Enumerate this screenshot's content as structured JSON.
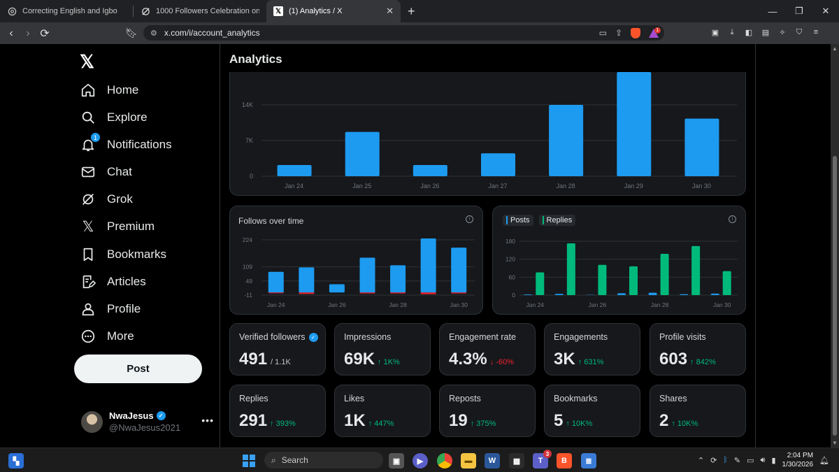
{
  "browser": {
    "tabs": [
      {
        "title": "Correcting English and Igbo",
        "icon": "chatgpt-icon",
        "active": false
      },
      {
        "title": "1000 Followers Celebration on X - Gr",
        "icon": "grok-icon",
        "active": false
      },
      {
        "title": "(1) Analytics / X",
        "icon": "x-icon",
        "active": true
      }
    ],
    "url": "x.com/i/account_analytics",
    "brave_badge": "1"
  },
  "sidebar": {
    "nav": [
      {
        "label": "Home",
        "icon": "home-icon"
      },
      {
        "label": "Explore",
        "icon": "search-icon"
      },
      {
        "label": "Notifications",
        "icon": "bell-icon",
        "badge": "1"
      },
      {
        "label": "Chat",
        "icon": "mail-icon"
      },
      {
        "label": "Grok",
        "icon": "grok-icon"
      },
      {
        "label": "Premium",
        "icon": "x-icon"
      },
      {
        "label": "Bookmarks",
        "icon": "bookmark-icon"
      },
      {
        "label": "Articles",
        "icon": "article-icon"
      },
      {
        "label": "Profile",
        "icon": "person-icon"
      },
      {
        "label": "More",
        "icon": "more-circle-icon"
      }
    ],
    "post_button": "Post",
    "profile": {
      "name": "NwaJesus",
      "handle": "@NwaJesus2021"
    }
  },
  "page": {
    "title": "Analytics"
  },
  "chart_data": [
    {
      "type": "bar",
      "title": "",
      "categories": [
        "Jan 24",
        "Jan 25",
        "Jan 26",
        "Jan 27",
        "Jan 28",
        "Jan 29",
        "Jan 30"
      ],
      "values": [
        2200,
        8700,
        2200,
        4500,
        14000,
        21000,
        11300
      ],
      "yticks": [
        "0",
        "7K",
        "14K"
      ],
      "ytick_values": [
        0,
        7000,
        14000
      ],
      "ylim": [
        0,
        21000
      ],
      "colors": {
        "bar": "#1d9bf0"
      }
    },
    {
      "type": "bar",
      "title": "Follows over time",
      "categories": [
        "Jan 24",
        "",
        "Jan 26",
        "",
        "Jan 28",
        "",
        "Jan 30"
      ],
      "series": [
        {
          "values": [
            88,
            107,
            35,
            148,
            116,
            230,
            191
          ],
          "color": "#1d9bf0"
        },
        {
          "values": [
            -3,
            -6,
            0,
            -4,
            -4,
            -7,
            -4
          ],
          "color": "#f4212e"
        }
      ],
      "yticks": [
        "224",
        "109",
        "49",
        "-11"
      ],
      "ytick_values": [
        224,
        109,
        49,
        -11
      ],
      "ylim": [
        -11,
        230
      ]
    },
    {
      "type": "bar",
      "title": "",
      "categories": [
        "Jan 24",
        "",
        "Jan 26",
        "",
        "Jan 28",
        "",
        "Jan 30"
      ],
      "series": [
        {
          "name": "Posts",
          "values": [
            2,
            4,
            1,
            6,
            8,
            3,
            5
          ],
          "color": "#1d9bf0"
        },
        {
          "name": "Replies",
          "values": [
            76,
            173,
            101,
            96,
            138,
            164,
            80
          ],
          "color": "#00ba7c"
        }
      ],
      "yticks": [
        "0",
        "60",
        "120",
        "180"
      ],
      "ytick_values": [
        0,
        60,
        120,
        180
      ],
      "ylim": [
        0,
        180
      ]
    }
  ],
  "stats": [
    {
      "label": "Verified followers",
      "verified": true,
      "value": "491",
      "sub": "/ 1.1K",
      "change": "",
      "dir": ""
    },
    {
      "label": "Impressions",
      "value": "69K",
      "sub": "",
      "change": "↑ 1K%",
      "dir": "up"
    },
    {
      "label": "Engagement rate",
      "value": "4.3%",
      "sub": "",
      "change": "↓ -60%",
      "dir": "down"
    },
    {
      "label": "Engagements",
      "value": "3K",
      "sub": "",
      "change": "↑ 631%",
      "dir": "up"
    },
    {
      "label": "Profile visits",
      "value": "603",
      "sub": "",
      "change": "↑ 842%",
      "dir": "up"
    },
    {
      "label": "Replies",
      "value": "291",
      "sub": "",
      "change": "↑ 393%",
      "dir": "up"
    },
    {
      "label": "Likes",
      "value": "1K",
      "sub": "",
      "change": "↑ 447%",
      "dir": "up"
    },
    {
      "label": "Reposts",
      "value": "19",
      "sub": "",
      "change": "↑ 375%",
      "dir": "up"
    },
    {
      "label": "Bookmarks",
      "value": "5",
      "sub": "",
      "change": "↑ 10K%",
      "dir": "up"
    },
    {
      "label": "Shares",
      "value": "2",
      "sub": "",
      "change": "↑ 10K%",
      "dir": "up"
    }
  ],
  "taskbar": {
    "search_label": "Search",
    "teams_badge": "3",
    "time": "2:04 PM",
    "date": "1/30/2026"
  }
}
